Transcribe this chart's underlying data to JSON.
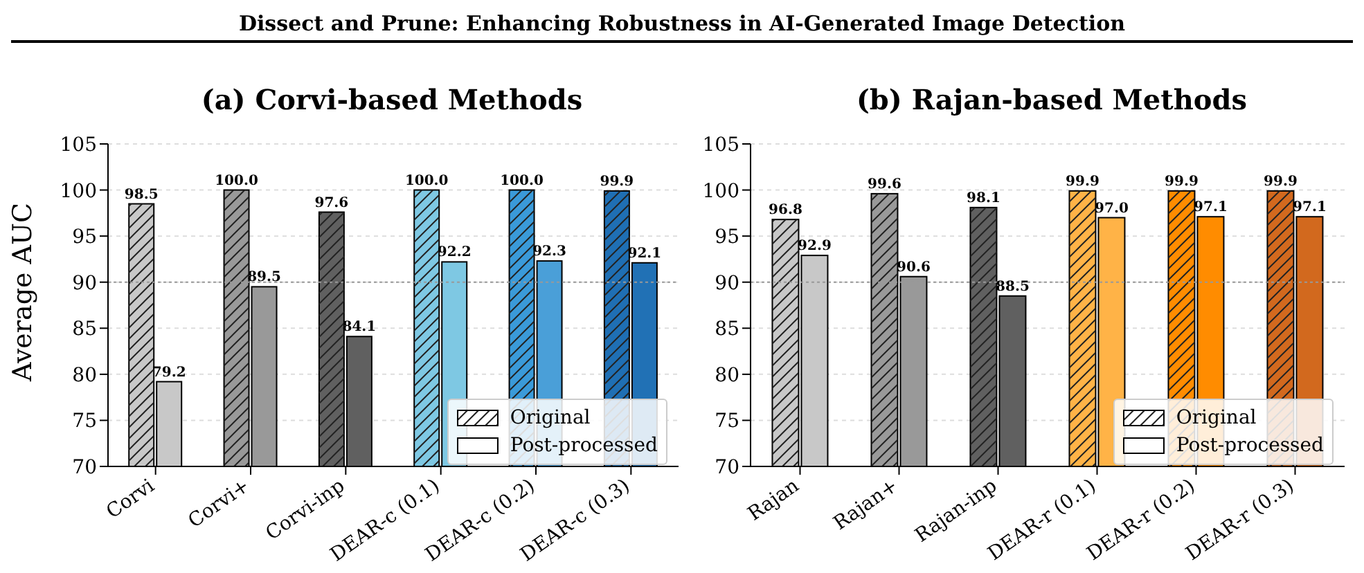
{
  "chart_data": [
    {
      "type": "bar",
      "title": "(a) Corvi-based Methods",
      "ylabel": "Average AUC",
      "annotations": [
        "Dissect and Prune: Enhancing Robustness in AI-Generated Image Detection"
      ],
      "categories": [
        "Corvi",
        "Corvi+",
        "Corvi-inp",
        "DEAR-c (0.1)",
        "DEAR-c (0.2)",
        "DEAR-c (0.3)"
      ],
      "series": [
        {
          "name": "Original",
          "colors": [
            "#c8c8c8",
            "#999999",
            "#606060",
            "#7ec8e3",
            "#3a9ad9",
            "#1f6fb4"
          ],
          "values": [
            98.5,
            100.0,
            97.6,
            100.0,
            100.0,
            99.9
          ],
          "value_labels": [
            "98.5",
            "100.0",
            "97.6",
            "100.0",
            "100.0",
            "99.9"
          ]
        },
        {
          "name": "Post-processed",
          "colors": [
            "#c8c8c8",
            "#999999",
            "#606060",
            "#7ec8e3",
            "#4a9fd8",
            "#2171b5"
          ],
          "values": [
            79.2,
            89.5,
            84.1,
            92.2,
            92.3,
            92.1
          ],
          "value_labels": [
            "79.2",
            "89.5",
            "84.1",
            "92.2",
            "92.3",
            "92.1"
          ]
        }
      ],
      "ylim": [
        70,
        105
      ],
      "yticks": [
        70,
        75,
        80,
        85,
        90,
        95,
        100,
        105
      ],
      "grid": "y",
      "legend": "bottom right",
      "ref_lines": [
        {
          "axis": "y",
          "value": 90,
          "color": "#999999",
          "line_style": "dotted"
        }
      ]
    },
    {
      "type": "bar",
      "title": "(b) Rajan-based Methods",
      "categories": [
        "Rajan",
        "Rajan+",
        "Rajan-inp",
        "DEAR-r (0.1)",
        "DEAR-r (0.2)",
        "DEAR-r (0.3)"
      ],
      "series": [
        {
          "name": "Original",
          "colors": [
            "#c8c8c8",
            "#999999",
            "#606060",
            "#ffb347",
            "#ff8c00",
            "#d2691e"
          ],
          "values": [
            96.8,
            99.6,
            98.1,
            99.9,
            99.9,
            99.9
          ],
          "value_labels": [
            "96.8",
            "99.6",
            "98.1",
            "99.9",
            "99.9",
            "99.9"
          ]
        },
        {
          "name": "Post-processed",
          "colors": [
            "#c8c8c8",
            "#999999",
            "#606060",
            "#ffb347",
            "#ff8c00",
            "#d2691e"
          ],
          "values": [
            92.9,
            90.6,
            88.5,
            97.0,
            97.1,
            97.1
          ],
          "value_labels": [
            "92.9",
            "90.6",
            "88.5",
            "97.0",
            "97.1",
            "97.1"
          ]
        }
      ],
      "ylim": [
        70,
        105
      ],
      "yticks": [
        70,
        75,
        80,
        85,
        90,
        95,
        100,
        105
      ],
      "grid": "y",
      "legend": "bottom right",
      "ref_lines": [
        {
          "axis": "y",
          "value": 90,
          "color": "#999999",
          "line_style": "dotted"
        }
      ]
    }
  ]
}
